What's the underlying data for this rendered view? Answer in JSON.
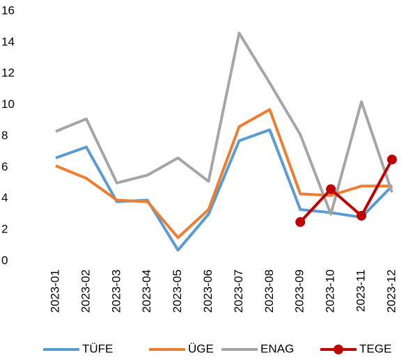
{
  "chart_data": {
    "type": "line",
    "categories": [
      "2023-01",
      "2023-02",
      "2023-03",
      "2023-04",
      "2023-05",
      "2023-06",
      "2023-07",
      "2023-08",
      "2023-09",
      "2023-10",
      "2023-11",
      "2023-12"
    ],
    "series": [
      {
        "name": "TÜFE",
        "color": "#5b9bd5",
        "values": [
          6.6,
          7.3,
          3.8,
          3.9,
          0.7,
          3.0,
          7.7,
          8.4,
          3.3,
          3.1,
          2.8,
          4.8
        ]
      },
      {
        "name": "ÜGE",
        "color": "#ed7d31",
        "values": [
          6.1,
          5.3,
          3.9,
          3.8,
          1.5,
          3.3,
          8.6,
          9.7,
          4.3,
          4.2,
          4.8,
          4.8
        ]
      },
      {
        "name": "ENAG",
        "color": "#a5a5a5",
        "values": [
          8.3,
          9.1,
          5.0,
          5.5,
          6.6,
          5.1,
          14.6,
          11.4,
          8.1,
          3.0,
          10.2,
          4.4
        ]
      },
      {
        "name": "TEGE",
        "color": "#c00000",
        "marker": true,
        "values": [
          null,
          null,
          null,
          null,
          null,
          null,
          null,
          null,
          2.5,
          4.6,
          2.9,
          6.5
        ]
      }
    ],
    "ylim": [
      0,
      16
    ],
    "yticks": [
      0,
      2,
      4,
      6,
      8,
      10,
      12,
      14,
      16
    ],
    "grid": false,
    "legend": "bottom"
  }
}
